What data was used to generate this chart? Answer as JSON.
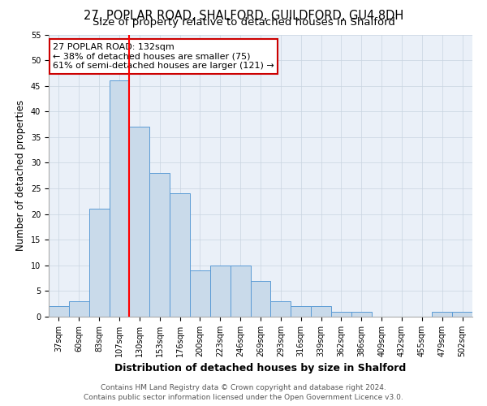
{
  "title1": "27, POPLAR ROAD, SHALFORD, GUILDFORD, GU4 8DH",
  "title2": "Size of property relative to detached houses in Shalford",
  "xlabel": "Distribution of detached houses by size in Shalford",
  "ylabel": "Number of detached properties",
  "footer1": "Contains HM Land Registry data © Crown copyright and database right 2024.",
  "footer2": "Contains public sector information licensed under the Open Government Licence v3.0.",
  "annotation_line1": "27 POPLAR ROAD: 132sqm",
  "annotation_line2": "← 38% of detached houses are smaller (75)",
  "annotation_line3": "61% of semi-detached houses are larger (121) →",
  "bar_labels": [
    "37sqm",
    "60sqm",
    "83sqm",
    "107sqm",
    "130sqm",
    "153sqm",
    "176sqm",
    "200sqm",
    "223sqm",
    "246sqm",
    "269sqm",
    "293sqm",
    "316sqm",
    "339sqm",
    "362sqm",
    "386sqm",
    "409sqm",
    "432sqm",
    "455sqm",
    "479sqm",
    "502sqm"
  ],
  "bar_values": [
    2,
    3,
    21,
    46,
    37,
    28,
    24,
    9,
    10,
    10,
    7,
    3,
    2,
    2,
    1,
    1,
    0,
    0,
    0,
    1,
    1
  ],
  "bar_color": "#c9daea",
  "bar_edge_color": "#5b9bd5",
  "red_line_index": 4,
  "ylim": [
    0,
    55
  ],
  "yticks": [
    0,
    5,
    10,
    15,
    20,
    25,
    30,
    35,
    40,
    45,
    50,
    55
  ],
  "background_color": "#ffffff",
  "plot_bg_color": "#eaf0f8",
  "grid_color": "#c8d4e0",
  "annotation_box_color": "#ffffff",
  "annotation_box_edge": "#cc0000",
  "title1_fontsize": 10.5,
  "title2_fontsize": 9.5,
  "ylabel_fontsize": 8.5,
  "xlabel_fontsize": 9,
  "tick_fontsize": 7,
  "footer_fontsize": 6.5,
  "annotation_fontsize": 8
}
